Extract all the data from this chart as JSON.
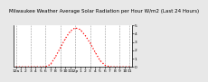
{
  "title": "Milwaukee Weather Average Solar Radiation per Hour W/m2 (Last 24 Hours)",
  "x_values": [
    0,
    1,
    2,
    3,
    4,
    5,
    6,
    7,
    8,
    9,
    10,
    11,
    12,
    13,
    14,
    15,
    16,
    17,
    18,
    19,
    20,
    21,
    22,
    23
  ],
  "y_values": [
    0,
    0,
    0,
    0,
    0,
    0,
    2,
    30,
    120,
    230,
    340,
    430,
    470,
    450,
    380,
    290,
    180,
    80,
    20,
    2,
    0,
    0,
    0,
    0
  ],
  "line_color": "#ff0000",
  "bg_color": "#e8e8e8",
  "plot_bg": "#ffffff",
  "ylim": [
    0,
    500
  ],
  "yticks": [
    0,
    100,
    200,
    300,
    400,
    500
  ],
  "ytick_labels": [
    "0",
    "1",
    "2",
    "3",
    "4",
    "5"
  ],
  "xtick_labels": [
    "12a",
    "1",
    "2",
    "3",
    "4",
    "5",
    "6",
    "7",
    "8",
    "9",
    "10",
    "11",
    "12p",
    "1",
    "2",
    "3",
    "4",
    "5",
    "6",
    "7",
    "8",
    "9",
    "10",
    "11"
  ],
  "grid_positions": [
    0,
    3,
    6,
    9,
    12,
    15,
    18,
    21,
    23
  ],
  "grid_color": "#999999",
  "title_fontsize": 4.0,
  "tick_fontsize": 3.2,
  "line_width": 0.9,
  "dot_size": 0.8
}
